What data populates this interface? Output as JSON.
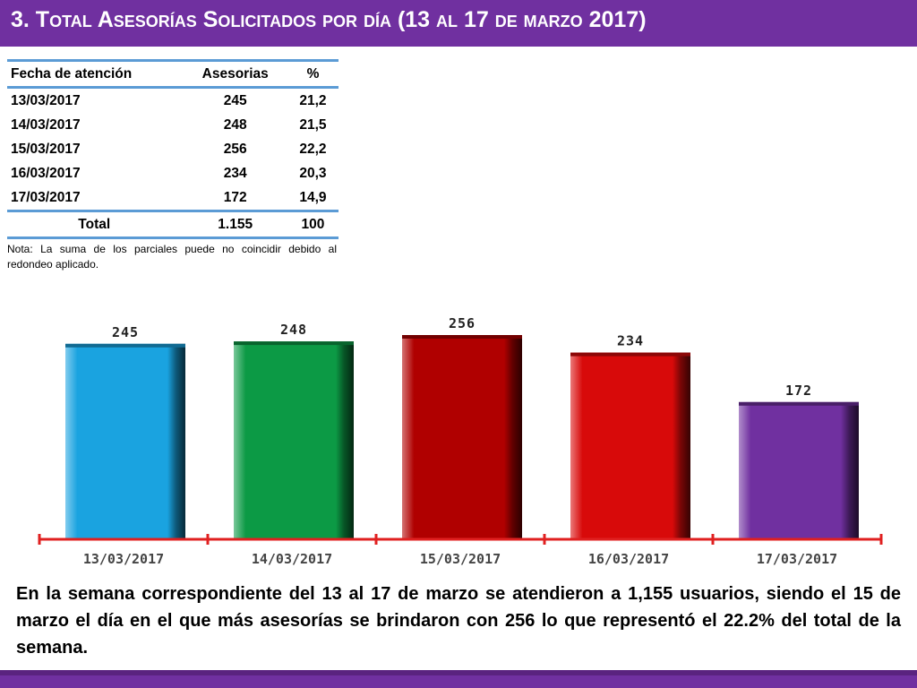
{
  "title": "3.  Total Asesorías Solicitados por día  (13 al 17 de marzo 2017)",
  "colors": {
    "accent": "#7030a0",
    "table_rule": "#5b9bd5",
    "axis": "#e02020"
  },
  "table": {
    "headers": [
      "Fecha de atención",
      "Asesorias",
      "%"
    ],
    "rows": [
      [
        "13/03/2017",
        "245",
        "21,2"
      ],
      [
        "14/03/2017",
        "248",
        "21,5"
      ],
      [
        "15/03/2017",
        "256",
        "22,2"
      ],
      [
        "16/03/2017",
        "234",
        "20,3"
      ],
      [
        "17/03/2017",
        "172",
        "14,9"
      ]
    ],
    "total": [
      "Total",
      "1.155",
      "100"
    ]
  },
  "note": "Nota: La suma de los parciales puede no coincidir debido al redondeo aplicado.",
  "chart_data": {
    "type": "bar",
    "categories": [
      "13/03/2017",
      "14/03/2017",
      "15/03/2017",
      "16/03/2017",
      "17/03/2017"
    ],
    "values": [
      245,
      248,
      256,
      234,
      172
    ],
    "colors": [
      "#1aa3e0",
      "#0c9a45",
      "#b00000",
      "#d80a0a",
      "#7030a0"
    ],
    "ylim": [
      0,
      256
    ],
    "grid": false,
    "title": "",
    "xlabel": "",
    "ylabel": ""
  },
  "summary": "En la semana correspondiente del 13 al 17 de marzo se atendieron a 1,155 usuarios, siendo el 15 de marzo el día en el que más asesorías se brindaron con 256 lo que representó el 22.2% del total de la semana."
}
